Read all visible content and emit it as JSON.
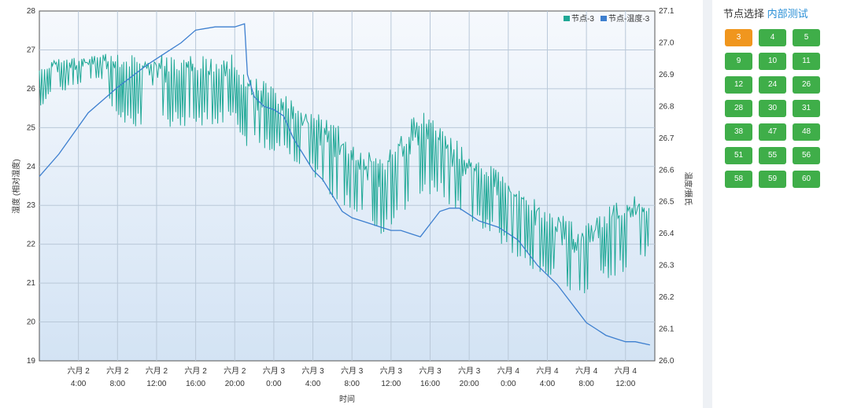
{
  "chart_data": {
    "type": "line",
    "title": "",
    "xlabel": "时间",
    "y_left_label": "湿度 (相对湿度)",
    "y_right_label": "温度/摄氏",
    "y_left_range": [
      19,
      28
    ],
    "y_left_ticks": [
      "19",
      "20",
      "21",
      "22",
      "23",
      "24",
      "25",
      "26",
      "27",
      "28"
    ],
    "y_right_range": [
      26.0,
      27.1
    ],
    "y_right_ticks": [
      "26.0",
      "26.1",
      "26.2",
      "26.3",
      "26.4",
      "26.5",
      "26.6",
      "26.7",
      "26.8",
      "26.9",
      "27.0",
      "27.1"
    ],
    "x_range_hours": [
      0,
      63
    ],
    "x_tick_hours": [
      4,
      8,
      12,
      16,
      20,
      24,
      28,
      32,
      36,
      40,
      44,
      48,
      52,
      56,
      60
    ],
    "x_tick_labels": [
      [
        "六月 2",
        "4:00"
      ],
      [
        "六月 2",
        "8:00"
      ],
      [
        "六月 2",
        "12:00"
      ],
      [
        "六月 2",
        "16:00"
      ],
      [
        "六月 2",
        "20:00"
      ],
      [
        "六月 3",
        "0:00"
      ],
      [
        "六月 3",
        "4:00"
      ],
      [
        "六月 3",
        "8:00"
      ],
      [
        "六月 3",
        "12:00"
      ],
      [
        "六月 3",
        "16:00"
      ],
      [
        "六月 3",
        "20:00"
      ],
      [
        "六月 4",
        "0:00"
      ],
      [
        "六月 4",
        "4:00"
      ],
      [
        "六月 4",
        "8:00"
      ],
      [
        "六月 4",
        "12:00"
      ]
    ],
    "grid": true,
    "legend_position": "top-right",
    "series": [
      {
        "name": "节点-3",
        "axis": "left",
        "color": "#1fa896",
        "envelope": [
          [
            0,
            25.5,
            26.6
          ],
          [
            2,
            25.9,
            26.8
          ],
          [
            4,
            26.0,
            26.8
          ],
          [
            6,
            26.3,
            26.9
          ],
          [
            8,
            25.2,
            26.9
          ],
          [
            10,
            25.0,
            26.9
          ],
          [
            14,
            25.0,
            26.9
          ],
          [
            18,
            25.0,
            26.9
          ],
          [
            20,
            25.2,
            26.9
          ],
          [
            20.5,
            24.5,
            26.4
          ],
          [
            23,
            24.4,
            26.2
          ],
          [
            25,
            24.3,
            25.9
          ],
          [
            27,
            24.0,
            25.5
          ],
          [
            30,
            23.2,
            25.2
          ],
          [
            33,
            22.5,
            24.5
          ],
          [
            35,
            22.2,
            24.2
          ],
          [
            37,
            22.7,
            25.0
          ],
          [
            39,
            23.2,
            25.5
          ],
          [
            41,
            23.2,
            25.2
          ],
          [
            43,
            22.7,
            24.6
          ],
          [
            46,
            22.3,
            24.2
          ],
          [
            49,
            21.6,
            23.5
          ],
          [
            52,
            21.1,
            23.0
          ],
          [
            55,
            20.6,
            22.5
          ],
          [
            57,
            20.9,
            22.7
          ],
          [
            59,
            21.2,
            23.2
          ],
          [
            61,
            21.4,
            23.3
          ],
          [
            62.5,
            21.7,
            23.0
          ]
        ]
      },
      {
        "name": "节点-温度-3",
        "axis": "right",
        "color": "#3d7fcf",
        "points": [
          [
            0,
            26.58
          ],
          [
            2,
            26.65
          ],
          [
            5,
            26.78
          ],
          [
            8,
            26.86
          ],
          [
            11,
            26.93
          ],
          [
            13,
            26.97
          ],
          [
            14.5,
            27.0
          ],
          [
            16,
            27.04
          ],
          [
            18,
            27.05
          ],
          [
            20,
            27.05
          ],
          [
            21,
            27.06
          ],
          [
            21.3,
            26.9
          ],
          [
            22,
            26.83
          ],
          [
            23,
            26.8
          ],
          [
            24,
            26.79
          ],
          [
            25,
            26.77
          ],
          [
            26,
            26.7
          ],
          [
            27,
            26.65
          ],
          [
            28,
            26.6
          ],
          [
            29,
            26.57
          ],
          [
            30,
            26.52
          ],
          [
            31,
            26.47
          ],
          [
            32,
            26.45
          ],
          [
            33,
            26.44
          ],
          [
            34,
            26.43
          ],
          [
            35,
            26.42
          ],
          [
            36,
            26.41
          ],
          [
            37,
            26.41
          ],
          [
            38,
            26.4
          ],
          [
            39,
            26.39
          ],
          [
            40,
            26.43
          ],
          [
            41,
            26.47
          ],
          [
            42,
            26.48
          ],
          [
            43,
            26.48
          ],
          [
            44,
            26.46
          ],
          [
            45,
            26.44
          ],
          [
            46,
            26.43
          ],
          [
            47,
            26.42
          ],
          [
            48,
            26.4
          ],
          [
            49,
            26.38
          ],
          [
            50,
            26.34
          ],
          [
            51,
            26.3
          ],
          [
            52,
            26.27
          ],
          [
            53,
            26.24
          ],
          [
            54,
            26.2
          ],
          [
            55,
            26.16
          ],
          [
            56,
            26.12
          ],
          [
            57,
            26.1
          ],
          [
            58,
            26.08
          ],
          [
            59,
            26.07
          ],
          [
            60,
            26.06
          ],
          [
            61,
            26.06
          ],
          [
            62.5,
            26.05
          ]
        ]
      }
    ]
  },
  "side": {
    "title_prefix": "节点选择",
    "title_link": "内部测试",
    "active_node": "3",
    "nodes": [
      "3",
      "4",
      "5",
      "9",
      "10",
      "11",
      "12",
      "24",
      "26",
      "28",
      "30",
      "31",
      "38",
      "47",
      "48",
      "51",
      "55",
      "56",
      "58",
      "59",
      "60"
    ]
  }
}
